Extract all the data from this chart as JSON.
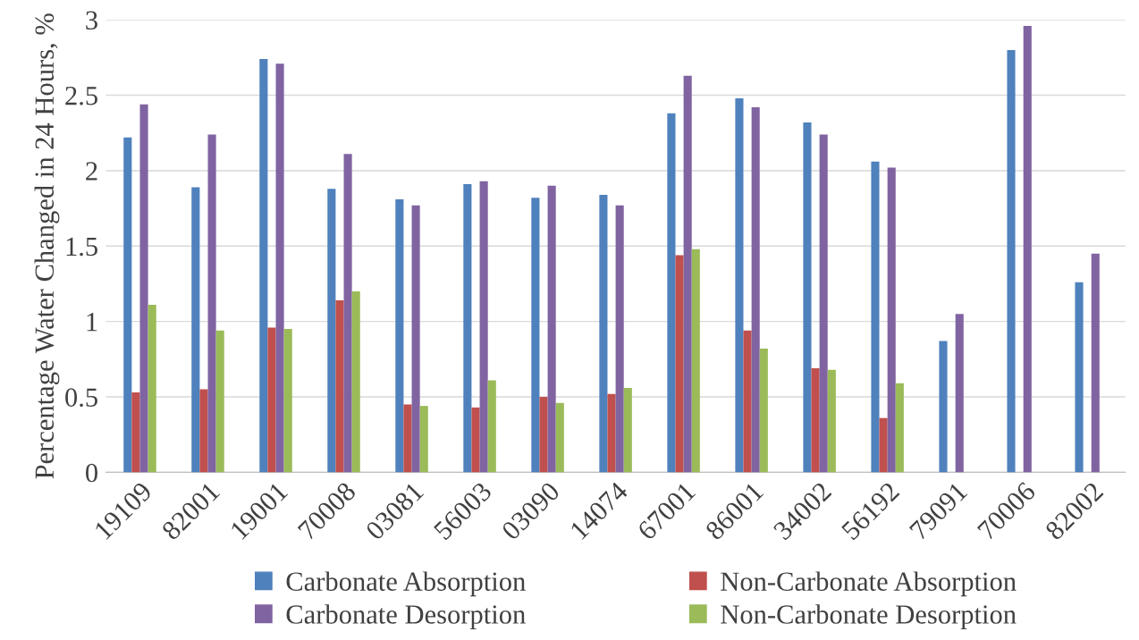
{
  "chart_data": {
    "type": "bar",
    "ylabel": "Percentage Water Changed in 24 Hours, %",
    "categories": [
      "19109",
      "82001",
      "19001",
      "70008",
      "03081",
      "56003",
      "03090",
      "14074",
      "67001",
      "86001",
      "34002",
      "56192",
      "79091",
      "70006",
      "82002"
    ],
    "series": [
      {
        "name": "Carbonate Absorption",
        "color": "#4f81bd",
        "values": [
          2.22,
          1.89,
          2.74,
          1.88,
          1.81,
          1.91,
          1.82,
          1.84,
          2.38,
          2.48,
          2.32,
          2.06,
          0.87,
          2.8,
          1.26
        ]
      },
      {
        "name": "Non-Carbonate Absorption",
        "color": "#c0504d",
        "values": [
          0.53,
          0.55,
          0.96,
          1.14,
          0.45,
          0.43,
          0.5,
          0.52,
          1.44,
          0.94,
          0.69,
          0.36,
          null,
          null,
          null
        ]
      },
      {
        "name": "Carbonate Desorption",
        "color": "#8064a2",
        "values": [
          2.44,
          2.24,
          2.71,
          2.11,
          1.77,
          1.93,
          1.9,
          1.77,
          2.63,
          2.42,
          2.24,
          2.02,
          1.05,
          2.96,
          1.45
        ]
      },
      {
        "name": "Non-Carbonate Desorption",
        "color": "#9bbb59",
        "values": [
          1.11,
          0.94,
          0.95,
          1.2,
          0.44,
          0.61,
          0.46,
          0.56,
          1.48,
          0.82,
          0.68,
          0.59,
          null,
          null,
          null
        ]
      }
    ],
    "ylim": [
      0,
      3
    ],
    "yticks": [
      0,
      0.5,
      1,
      1.5,
      2,
      2.5,
      3
    ],
    "grid": "y",
    "legend": "bottom"
  }
}
